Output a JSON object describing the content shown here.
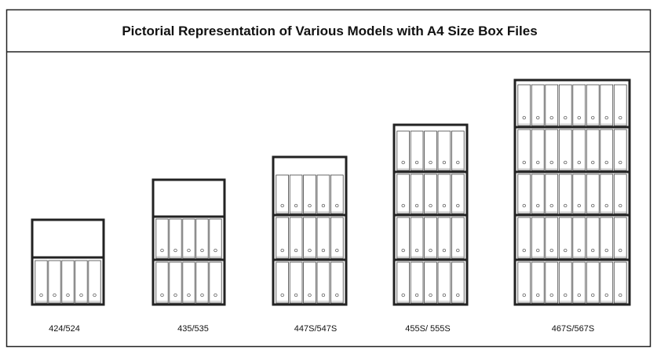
{
  "title": "Pictorial Representation of Various Models with A4 Size Box Files",
  "models": [
    {
      "label": "424/524"
    },
    {
      "label": "435/535"
    },
    {
      "label": "447S/547S"
    },
    {
      "label": "455S/ 555S"
    },
    {
      "label": "467S/567S"
    }
  ]
}
